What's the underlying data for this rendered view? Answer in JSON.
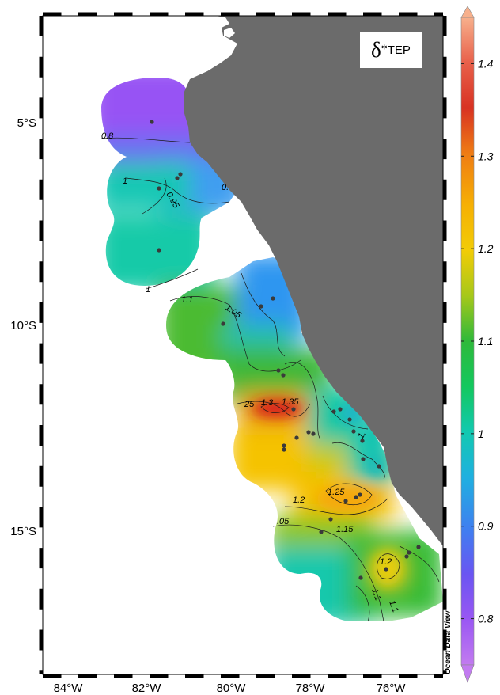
{
  "map": {
    "lon_range": [
      -85,
      -75
    ],
    "lat_range": [
      -18.5,
      -2.8
    ],
    "lon_ticks": [
      "84°W",
      "82°W",
      "80°W",
      "78°W",
      "76°W"
    ],
    "lat_ticks": [
      "5°S",
      "10°S",
      "15°S"
    ],
    "land_color": "#6b6b6b",
    "ocean_color": "#ffffff"
  },
  "variable": {
    "symbol": "δ",
    "superscript": "*",
    "subscript": "TEP"
  },
  "colorbar": {
    "min": 0.75,
    "max": 1.45,
    "ticks": [
      "0.8",
      "0.9",
      "1",
      "1.1",
      "1.2",
      "1.3",
      "1.4"
    ],
    "tick_values": [
      0.8,
      0.9,
      1.0,
      1.1,
      1.2,
      1.3,
      1.4
    ],
    "colors": [
      "#c27bf0",
      "#8a4cf5",
      "#4d6cf0",
      "#2f9bf0",
      "#17c4c4",
      "#13c86a",
      "#33b83a",
      "#9ac81e",
      "#e6d20a",
      "#f8c400",
      "#f5a40c",
      "#ea6418",
      "#d42a22",
      "#f59470"
    ]
  },
  "attribution": "Ocean Data View",
  "contour_labels": [
    "0.8",
    "1",
    "0.95",
    "0.",
    "1",
    "1.1",
    "1.05",
    "25",
    "1.3",
    "1.35",
    "1.",
    "1.25",
    "1.2",
    ".05",
    "1.15",
    "1.2",
    "1.1",
    "1.1"
  ]
}
